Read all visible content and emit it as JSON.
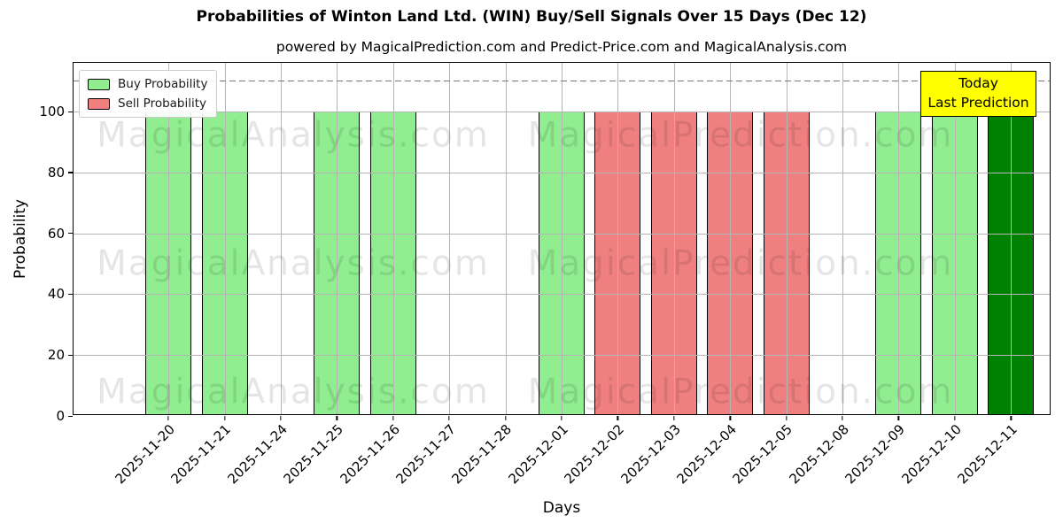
{
  "header": {
    "title": "Probabilities of Winton Land Ltd. (WIN) Buy/Sell Signals Over 15 Days (Dec 12)",
    "subtitle": "powered by MagicalPrediction.com and Predict-Price.com and MagicalAnalysis.com"
  },
  "legend": {
    "items": [
      {
        "label": "Buy Probability",
        "color": "#90EE90"
      },
      {
        "label": "Sell Probability",
        "color": "#F08080"
      }
    ]
  },
  "annotation": {
    "line1": "Today",
    "line2": "Last Prediction",
    "bg_color": "#FFFF00"
  },
  "watermarks": {
    "left_text": "MagicalAnalysis.com",
    "right_text": "MagicalPrediction.com"
  },
  "chart_data": {
    "type": "bar",
    "title": "Probabilities of Winton Land Ltd. (WIN) Buy/Sell Signals Over 15 Days (Dec 12)",
    "xlabel": "Days",
    "ylabel": "Probability",
    "ylim": [
      0,
      116
    ],
    "yticks": [
      0,
      20,
      40,
      60,
      80,
      100
    ],
    "grid": true,
    "legend_position": "upper-left",
    "dashed_line_y": 110,
    "dashed_line_color": "#787878",
    "categories": [
      "2025-11-20",
      "2025-11-21",
      "2025-11-24",
      "2025-11-25",
      "2025-11-26",
      "2025-11-27",
      "2025-11-28",
      "2025-12-01",
      "2025-12-02",
      "2025-12-03",
      "2025-12-04",
      "2025-12-05",
      "2025-12-08",
      "2025-12-09",
      "2025-12-10",
      "2025-12-11"
    ],
    "series": [
      {
        "name": "Buy Probability",
        "color": "#90EE90",
        "values": [
          100,
          100,
          0,
          100,
          100,
          0,
          0,
          100,
          0,
          0,
          0,
          0,
          0,
          100,
          100,
          0
        ]
      },
      {
        "name": "Sell Probability",
        "color": "#F08080",
        "values": [
          0,
          0,
          0,
          0,
          0,
          0,
          0,
          0,
          100,
          100,
          100,
          100,
          0,
          0,
          0,
          0
        ]
      },
      {
        "name": "Today Last Prediction",
        "color": "#008000",
        "values": [
          0,
          0,
          0,
          0,
          0,
          0,
          0,
          0,
          0,
          0,
          0,
          0,
          0,
          0,
          0,
          100
        ]
      }
    ]
  }
}
